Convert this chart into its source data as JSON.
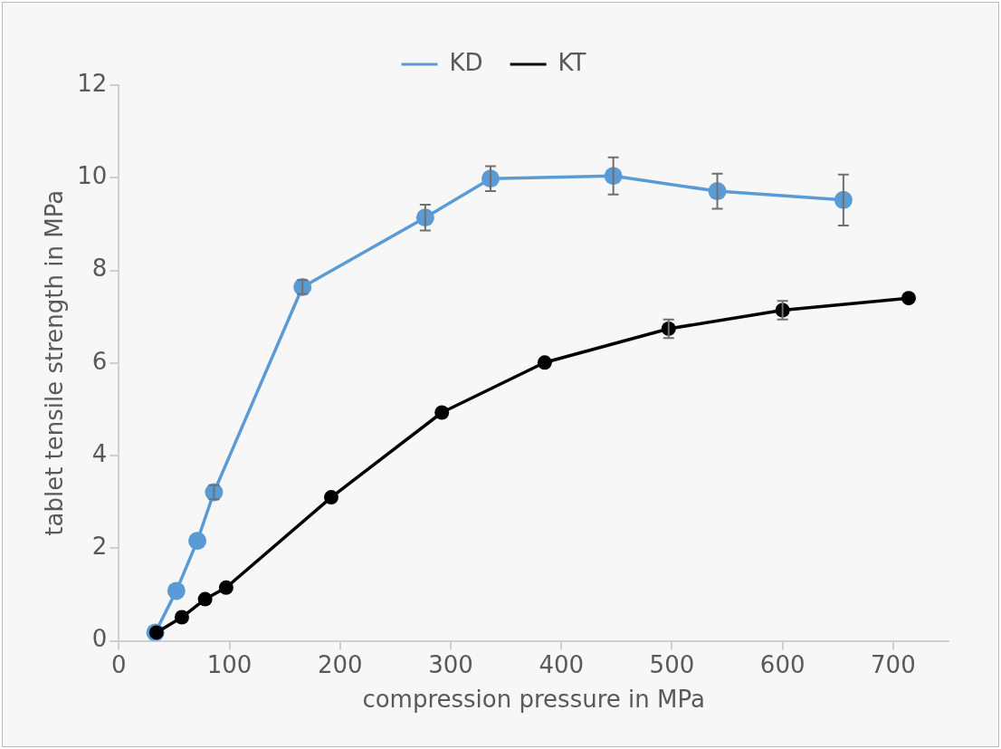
{
  "chart_data": {
    "type": "line",
    "xlabel": "compression pressure in MPa",
    "ylabel": "tablet tensile strength in MPa",
    "xlim": [
      0,
      750
    ],
    "xticks": [
      0,
      100,
      200,
      300,
      400,
      500,
      600,
      700
    ],
    "ylim": [
      0,
      12
    ],
    "yticks": [
      0,
      2,
      4,
      6,
      8,
      10,
      12
    ],
    "grid": false,
    "legend": "top",
    "marker": "circle",
    "line_style": "solid",
    "series": [
      {
        "name": "KD",
        "color": "#5b9bd5",
        "x": [
          33,
          52,
          71,
          86,
          166,
          277,
          336,
          447,
          541,
          655
        ],
        "values": [
          0.18,
          1.08,
          2.16,
          3.21,
          7.64,
          9.14,
          9.98,
          10.04,
          9.71,
          9.52
        ],
        "errors": [
          null,
          null,
          null,
          0.15,
          0.15,
          0.28,
          0.27,
          0.4,
          0.38,
          0.55
        ]
      },
      {
        "name": "KT",
        "color": "#000000",
        "x": [
          34,
          57,
          78,
          97,
          192,
          292,
          385,
          497,
          600,
          714
        ],
        "values": [
          0.18,
          0.51,
          0.9,
          1.15,
          3.1,
          4.93,
          6.01,
          6.74,
          7.14,
          7.4
        ],
        "errors": [
          null,
          null,
          null,
          null,
          null,
          null,
          null,
          0.2,
          0.2,
          null
        ]
      }
    ]
  }
}
